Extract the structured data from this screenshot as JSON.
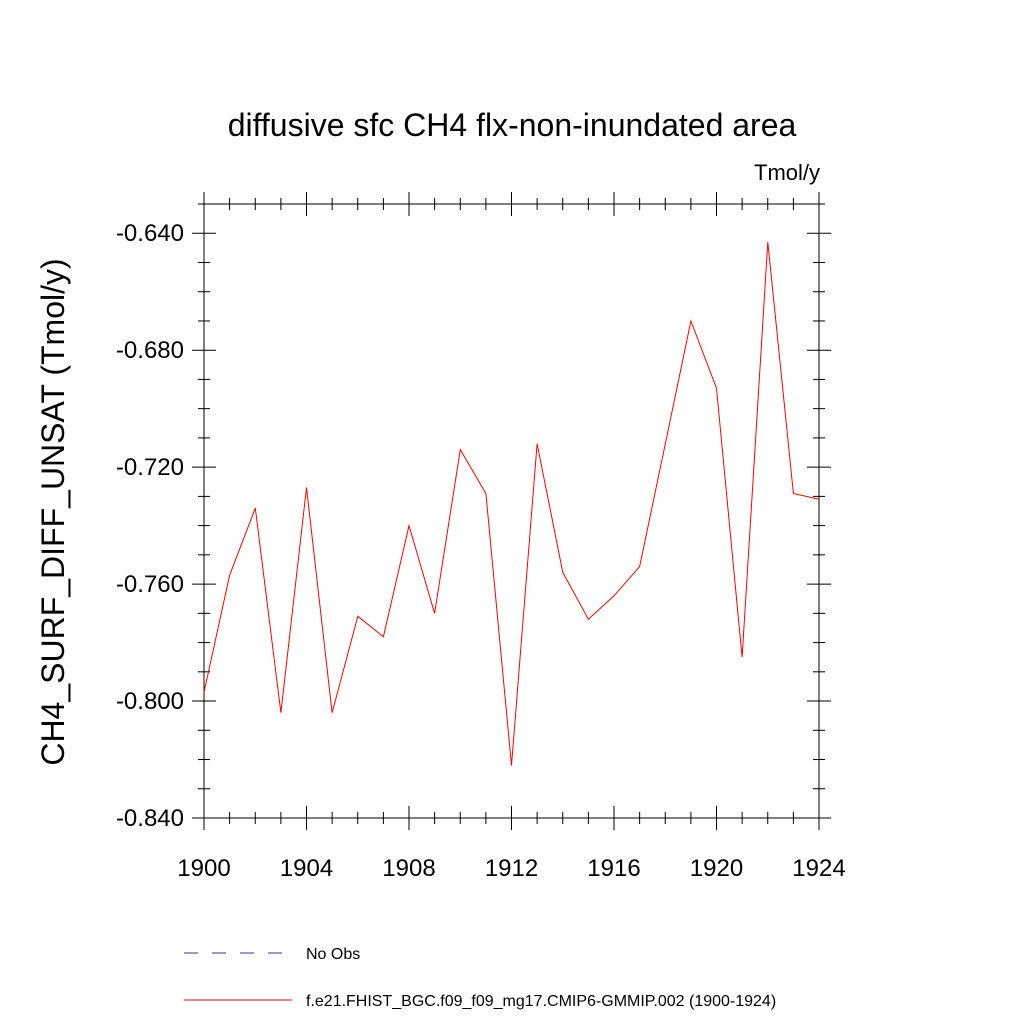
{
  "chart_data": {
    "type": "line",
    "title": "diffusive sfc CH4 flx-non-inundated area",
    "units": "Tmol/y",
    "ylabel": "CH4_SURF_DIFF_UNSAT  (Tmol/y)",
    "xlabel": "",
    "xlim": [
      1900,
      1924
    ],
    "ylim": [
      -0.84,
      -0.63
    ],
    "x_ticks": [
      "1900",
      "1904",
      "1908",
      "1912",
      "1916",
      "1920",
      "1924"
    ],
    "y_ticks": [
      "-0.640",
      "-0.680",
      "-0.720",
      "-0.760",
      "-0.800",
      "-0.840"
    ],
    "grid": false,
    "legend_position": "bottom",
    "x": [
      1900,
      1901,
      1902,
      1903,
      1904,
      1905,
      1906,
      1907,
      1908,
      1909,
      1910,
      1911,
      1912,
      1913,
      1914,
      1915,
      1916,
      1917,
      1918,
      1919,
      1920,
      1921,
      1922,
      1923,
      1924
    ],
    "series": [
      {
        "name": "f.e21.FHIST_BGC.f09_f09_mg17.CMIP6-GMMIP.002 (1900-1924)",
        "color": "#ff0000",
        "values": [
          -0.797,
          -0.757,
          -0.734,
          -0.804,
          -0.727,
          -0.804,
          -0.771,
          -0.778,
          -0.74,
          -0.77,
          -0.714,
          -0.729,
          -0.822,
          -0.712,
          -0.756,
          -0.772,
          -0.764,
          -0.754,
          -0.712,
          -0.67,
          -0.693,
          -0.785,
          -0.643,
          -0.729,
          -0.731
        ]
      }
    ],
    "legend": [
      {
        "label": "No Obs",
        "color": "#3333aa",
        "style": "dashed"
      },
      {
        "label": "f.e21.FHIST_BGC.f09_f09_mg17.CMIP6-GMMIP.002 (1900-1924)",
        "color": "#ff0000",
        "style": "solid"
      }
    ]
  }
}
